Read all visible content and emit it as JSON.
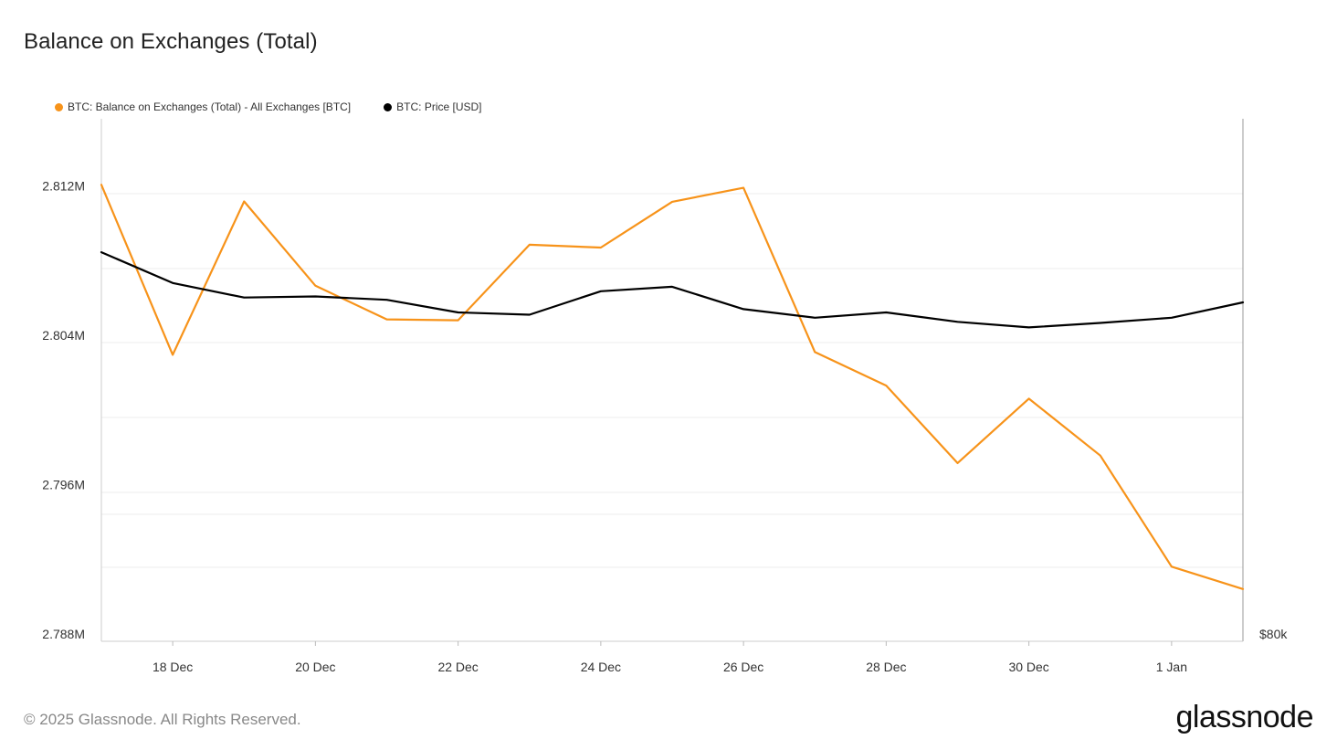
{
  "title": "Balance on Exchanges (Total)",
  "footer": "© 2025 Glassnode. All Rights Reserved.",
  "brand": "glassnode",
  "colors": {
    "balance": "#f7931a",
    "price": "#000000",
    "grid": "#ececec",
    "axis": "#cccccc"
  },
  "chart_data": {
    "type": "line",
    "legend_position": "top-left",
    "grid": true,
    "x": [
      "17 Dec",
      "18 Dec",
      "19 Dec",
      "20 Dec",
      "21 Dec",
      "22 Dec",
      "23 Dec",
      "24 Dec",
      "25 Dec",
      "26 Dec",
      "27 Dec",
      "28 Dec",
      "29 Dec",
      "30 Dec",
      "31 Dec",
      "1 Jan",
      "2 Jan"
    ],
    "x_tick_labels": [
      "18 Dec",
      "20 Dec",
      "22 Dec",
      "24 Dec",
      "26 Dec",
      "28 Dec",
      "30 Dec",
      "1 Jan"
    ],
    "y_left": {
      "ticks": [
        "2.812M",
        "2.804M",
        "2.796M",
        "2.788M"
      ],
      "tick_values": [
        2812000,
        2804000,
        2796000,
        2788000
      ],
      "range": [
        2788000,
        2816000
      ]
    },
    "y_right": {
      "ticks": [
        "$80k"
      ],
      "tick_values": [
        80000
      ],
      "range": [
        80000,
        108000
      ]
    },
    "series": [
      {
        "name": "BTC: Balance on Exchanges (Total) - All Exchanges [BTC]",
        "axis": "left",
        "color": "#f7931a",
        "values": [
          2812460,
          2803350,
          2811570,
          2807050,
          2805250,
          2805200,
          2809250,
          2809100,
          2811550,
          2812300,
          2803500,
          2801700,
          2797550,
          2801000,
          2797950,
          2792000,
          2790800
        ]
      },
      {
        "name": "BTC: Price [USD]",
        "axis": "right",
        "color": "#000000",
        "values": [
          100850,
          99200,
          98420,
          98480,
          98300,
          97620,
          97500,
          98760,
          99000,
          97800,
          97340,
          97620,
          97120,
          96820,
          97060,
          97340,
          98160
        ]
      }
    ]
  }
}
